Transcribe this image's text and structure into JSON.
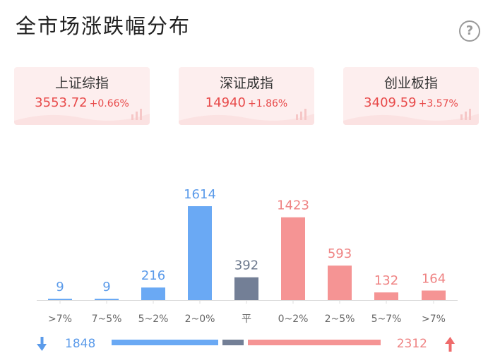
{
  "page": {
    "title": "全市场涨跌幅分布",
    "help_icon": "question-circle-icon",
    "help_glyph": "?"
  },
  "indices": [
    {
      "name": "上证综指",
      "price": "3553.72",
      "change": "+0.66%"
    },
    {
      "name": "深证成指",
      "price": "14940",
      "change": "+1.86%"
    },
    {
      "name": "创业板指",
      "price": "3409.59",
      "change": "+3.57%"
    }
  ],
  "colors": {
    "down": "#6aa9f4",
    "flat": "#737f96",
    "up": "#f59494",
    "down_text": "#5b9bea",
    "flat_text": "#6e7a8e",
    "up_text": "#ef8383",
    "up_arrow": "#ef6b6b",
    "card_bg": "#fdeeee",
    "card_text": "#e84a4a"
  },
  "chart_data": {
    "type": "bar",
    "categories": [
      ">7%",
      "7~5%",
      "5~2%",
      "2~0%",
      "平",
      "0~2%",
      "2~5%",
      "5~7%",
      ">7%"
    ],
    "values": [
      9,
      9,
      216,
      1614,
      392,
      1423,
      593,
      132,
      164
    ],
    "groups": [
      "down",
      "down",
      "down",
      "down",
      "flat",
      "up",
      "up",
      "up",
      "up"
    ],
    "ylim": [
      0,
      1614
    ]
  },
  "summary": {
    "down_count": "1848",
    "up_count": "2312",
    "down_arrow": "arrow-down-icon",
    "up_arrow": "arrow-up-icon"
  }
}
